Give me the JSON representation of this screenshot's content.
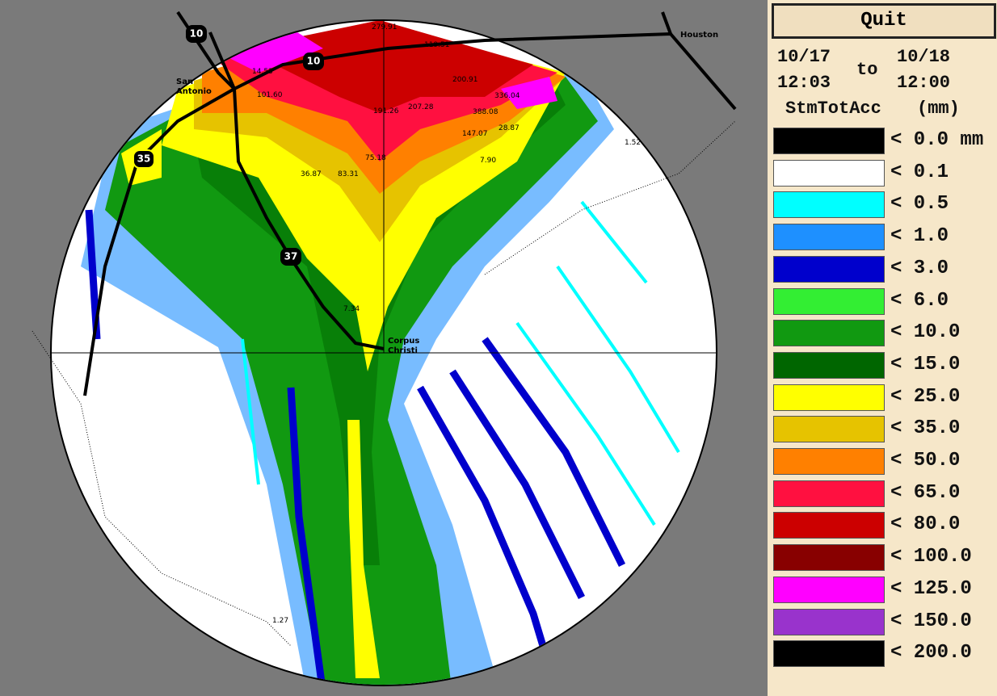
{
  "header": {
    "quit": "Quit",
    "start_date": "10/17",
    "start_time": "12:03",
    "to": "to",
    "end_date": "10/18",
    "end_time": "12:00",
    "product": "StmTotAcc",
    "units": "(mm)"
  },
  "legend": [
    {
      "label": "< 0.0 mm",
      "color": "#000000"
    },
    {
      "label": "< 0.1",
      "color": "#ffffff"
    },
    {
      "label": "< 0.5",
      "color": "#00ffff"
    },
    {
      "label": "< 1.0",
      "color": "#1e90ff"
    },
    {
      "label": "< 3.0",
      "color": "#0000cc"
    },
    {
      "label": "< 6.0",
      "color": "#33ee33"
    },
    {
      "label": "< 10.0",
      "color": "#119911"
    },
    {
      "label": "< 15.0",
      "color": "#006600"
    },
    {
      "label": "< 25.0",
      "color": "#ffff00"
    },
    {
      "label": "< 35.0",
      "color": "#e6c300"
    },
    {
      "label": "< 50.0",
      "color": "#ff8000"
    },
    {
      "label": "< 65.0",
      "color": "#ff1040"
    },
    {
      "label": "< 80.0",
      "color": "#cc0000"
    },
    {
      "label": "< 100.0",
      "color": "#880000"
    },
    {
      "label": "< 125.0",
      "color": "#ff00ff"
    },
    {
      "label": "< 150.0",
      "color": "#9933cc"
    },
    {
      "label": "< 200.0",
      "color": "#000000"
    }
  ],
  "map": {
    "cities": [
      [
        "San",
        "Antonio"
      ],
      [
        "Houston"
      ],
      [
        "Corpus",
        "Christi"
      ]
    ],
    "highways": [
      "10",
      "10",
      "35",
      "37"
    ],
    "point_values": [
      "279.91",
      "119.51",
      "14.53",
      "200.91",
      "101.60",
      "336.04",
      "191.26",
      "207.28",
      "388.08",
      "147.07",
      "28.87",
      "75.18",
      "83.31",
      "36.87",
      "7.90",
      "1.52",
      "7.34",
      "1.27"
    ]
  }
}
